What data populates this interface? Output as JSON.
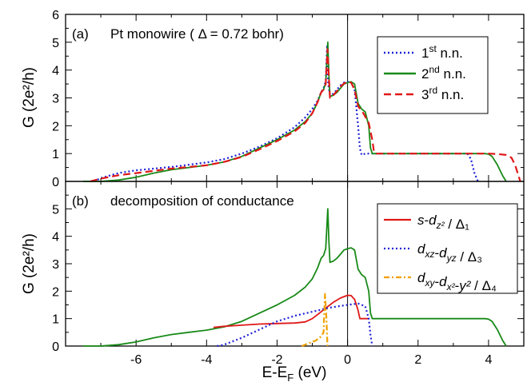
{
  "chart_data": [
    {
      "type": "line",
      "panel": "(a)",
      "title": "Pt monowire ( Δ = 0.72 bohr)",
      "xlabel": "E-E_F (eV)",
      "ylabel": "G (2e²/h)",
      "xlim": [
        -8,
        5
      ],
      "ylim": [
        0,
        6
      ],
      "xticks": [],
      "yticks": [
        "0",
        "1",
        "2",
        "3",
        "4",
        "5",
        "6"
      ],
      "legend_position": "top-right",
      "series": [
        {
          "name": "1st n.n.",
          "color": "#1f22d6",
          "dash": "dotted",
          "points": [
            [
              -7.2,
              0
            ],
            [
              -7.0,
              0.12
            ],
            [
              -6.5,
              0.3
            ],
            [
              -6.0,
              0.4
            ],
            [
              -5.5,
              0.46
            ],
            [
              -5.0,
              0.52
            ],
            [
              -4.5,
              0.6
            ],
            [
              -4.0,
              0.68
            ],
            [
              -3.5,
              0.8
            ],
            [
              -3.0,
              1.0
            ],
            [
              -2.5,
              1.25
            ],
            [
              -2.0,
              1.55
            ],
            [
              -1.5,
              1.95
            ],
            [
              -1.2,
              2.3
            ],
            [
              -1.0,
              2.6
            ],
            [
              -0.85,
              2.9
            ],
            [
              -0.75,
              3.2
            ],
            [
              -0.68,
              3.35
            ],
            [
              -0.62,
              3.6
            ],
            [
              -0.58,
              4.9
            ],
            [
              -0.55,
              3.5
            ],
            [
              -0.5,
              3.1
            ],
            [
              -0.4,
              3.15
            ],
            [
              -0.3,
              3.3
            ],
            [
              -0.2,
              3.45
            ],
            [
              -0.1,
              3.55
            ],
            [
              0.0,
              3.58
            ],
            [
              0.1,
              3.55
            ],
            [
              0.2,
              3.3
            ],
            [
              0.3,
              2.0
            ],
            [
              0.35,
              1.2
            ],
            [
              0.4,
              0.95
            ],
            [
              0.5,
              1.0
            ],
            [
              1.0,
              1.0
            ],
            [
              2.0,
              1.0
            ],
            [
              3.0,
              1.0
            ],
            [
              3.4,
              1.0
            ],
            [
              3.5,
              0.8
            ],
            [
              3.6,
              0.3
            ],
            [
              3.7,
              0
            ]
          ]
        },
        {
          "name": "2nd n.n.",
          "color": "#188a18",
          "dash": "solid",
          "points": [
            [
              -7.5,
              0
            ],
            [
              -7.0,
              0
            ],
            [
              -6.5,
              0.05
            ],
            [
              -6.0,
              0.15
            ],
            [
              -5.5,
              0.3
            ],
            [
              -5.0,
              0.42
            ],
            [
              -4.5,
              0.5
            ],
            [
              -4.0,
              0.58
            ],
            [
              -3.5,
              0.7
            ],
            [
              -3.0,
              0.9
            ],
            [
              -2.5,
              1.2
            ],
            [
              -2.0,
              1.5
            ],
            [
              -1.5,
              1.85
            ],
            [
              -1.2,
              2.15
            ],
            [
              -1.0,
              2.45
            ],
            [
              -0.85,
              2.85
            ],
            [
              -0.75,
              3.2
            ],
            [
              -0.68,
              3.3
            ],
            [
              -0.62,
              3.55
            ],
            [
              -0.56,
              5.0
            ],
            [
              -0.53,
              3.8
            ],
            [
              -0.5,
              3.05
            ],
            [
              -0.4,
              3.1
            ],
            [
              -0.3,
              3.2
            ],
            [
              -0.2,
              3.35
            ],
            [
              -0.1,
              3.5
            ],
            [
              0.0,
              3.55
            ],
            [
              0.1,
              3.58
            ],
            [
              0.2,
              3.5
            ],
            [
              0.3,
              2.8
            ],
            [
              0.4,
              2.6
            ],
            [
              0.5,
              2.5
            ],
            [
              0.6,
              2.0
            ],
            [
              0.65,
              1.2
            ],
            [
              0.7,
              1.0
            ],
            [
              1.0,
              1.0
            ],
            [
              2.0,
              1.0
            ],
            [
              3.0,
              1.0
            ],
            [
              3.9,
              1.0
            ],
            [
              4.0,
              0.98
            ],
            [
              4.1,
              0.9
            ],
            [
              4.25,
              0.6
            ],
            [
              4.4,
              0.2
            ],
            [
              4.5,
              0
            ]
          ]
        },
        {
          "name": "3rd n.n.",
          "color": "#e01818",
          "dash": "dashed",
          "points": [
            [
              -7.3,
              0
            ],
            [
              -7.0,
              0.1
            ],
            [
              -6.5,
              0.22
            ],
            [
              -6.0,
              0.3
            ],
            [
              -5.5,
              0.38
            ],
            [
              -5.0,
              0.46
            ],
            [
              -4.5,
              0.52
            ],
            [
              -4.0,
              0.58
            ],
            [
              -3.5,
              0.7
            ],
            [
              -3.0,
              0.88
            ],
            [
              -2.5,
              1.15
            ],
            [
              -2.0,
              1.45
            ],
            [
              -1.5,
              1.8
            ],
            [
              -1.2,
              2.1
            ],
            [
              -1.0,
              2.45
            ],
            [
              -0.85,
              2.85
            ],
            [
              -0.75,
              3.2
            ],
            [
              -0.68,
              3.3
            ],
            [
              -0.62,
              3.5
            ],
            [
              -0.57,
              4.75
            ],
            [
              -0.53,
              3.7
            ],
            [
              -0.5,
              3.0
            ],
            [
              -0.4,
              3.1
            ],
            [
              -0.3,
              3.25
            ],
            [
              -0.2,
              3.4
            ],
            [
              -0.1,
              3.52
            ],
            [
              0.0,
              3.58
            ],
            [
              0.1,
              3.55
            ],
            [
              0.2,
              3.3
            ],
            [
              0.3,
              2.7
            ],
            [
              0.45,
              2.45
            ],
            [
              0.6,
              2.1
            ],
            [
              0.7,
              1.5
            ],
            [
              0.75,
              1.05
            ],
            [
              0.8,
              1.0
            ],
            [
              1.0,
              1.0
            ],
            [
              2.0,
              1.0
            ],
            [
              3.0,
              1.0
            ],
            [
              4.0,
              1.0
            ],
            [
              4.3,
              0.98
            ],
            [
              4.5,
              0.95
            ],
            [
              4.65,
              0.85
            ],
            [
              4.75,
              0.6
            ],
            [
              4.85,
              0.2
            ],
            [
              4.9,
              0
            ]
          ]
        }
      ]
    },
    {
      "type": "line",
      "panel": "(b)",
      "title": "decomposition of conductance",
      "xlabel": "E-E_F (eV)",
      "ylabel": "G (2e²/h)",
      "xlim": [
        -8,
        5
      ],
      "ylim": [
        0,
        6
      ],
      "xticks": [
        "-6",
        "-4",
        "-2",
        "0",
        "2",
        "4"
      ],
      "yticks": [
        "0",
        "1",
        "2",
        "3",
        "4",
        "5"
      ],
      "legend_position": "top-right",
      "series": [
        {
          "name": "total (2nd n.n.)",
          "color": "#188a18",
          "dash": "solid",
          "in_legend": false,
          "points": [
            [
              -7.5,
              0
            ],
            [
              -7.0,
              0
            ],
            [
              -6.5,
              0.05
            ],
            [
              -6.0,
              0.15
            ],
            [
              -5.5,
              0.3
            ],
            [
              -5.0,
              0.42
            ],
            [
              -4.5,
              0.5
            ],
            [
              -4.0,
              0.58
            ],
            [
              -3.5,
              0.7
            ],
            [
              -3.0,
              0.9
            ],
            [
              -2.5,
              1.2
            ],
            [
              -2.0,
              1.5
            ],
            [
              -1.5,
              1.85
            ],
            [
              -1.2,
              2.15
            ],
            [
              -1.0,
              2.45
            ],
            [
              -0.85,
              2.85
            ],
            [
              -0.75,
              3.2
            ],
            [
              -0.68,
              3.3
            ],
            [
              -0.62,
              3.55
            ],
            [
              -0.56,
              5.0
            ],
            [
              -0.53,
              3.8
            ],
            [
              -0.5,
              3.05
            ],
            [
              -0.4,
              3.1
            ],
            [
              -0.3,
              3.2
            ],
            [
              -0.2,
              3.35
            ],
            [
              -0.1,
              3.5
            ],
            [
              0.0,
              3.55
            ],
            [
              0.1,
              3.58
            ],
            [
              0.2,
              3.5
            ],
            [
              0.3,
              2.8
            ],
            [
              0.4,
              2.6
            ],
            [
              0.5,
              2.5
            ],
            [
              0.6,
              2.0
            ],
            [
              0.65,
              1.2
            ],
            [
              0.7,
              1.0
            ],
            [
              1.0,
              1.0
            ],
            [
              2.0,
              1.0
            ],
            [
              3.0,
              1.0
            ],
            [
              3.9,
              1.0
            ],
            [
              4.0,
              0.98
            ],
            [
              4.1,
              0.9
            ],
            [
              4.25,
              0.6
            ],
            [
              4.4,
              0.2
            ],
            [
              4.5,
              0
            ]
          ]
        },
        {
          "name": "s-d_z² / Δ₁",
          "color": "#e01818",
          "dash": "solid",
          "in_legend": true,
          "points": [
            [
              -3.8,
              0.68
            ],
            [
              -3.5,
              0.72
            ],
            [
              -3.0,
              0.76
            ],
            [
              -2.5,
              0.8
            ],
            [
              -2.0,
              0.82
            ],
            [
              -1.5,
              0.84
            ],
            [
              -1.2,
              0.88
            ],
            [
              -1.0,
              1.0
            ],
            [
              -0.8,
              1.2
            ],
            [
              -0.6,
              1.4
            ],
            [
              -0.4,
              1.6
            ],
            [
              -0.2,
              1.75
            ],
            [
              0.0,
              1.85
            ],
            [
              0.1,
              1.84
            ],
            [
              0.2,
              1.7
            ],
            [
              0.3,
              1.3
            ],
            [
              0.35,
              1.0
            ],
            [
              0.5,
              1.0
            ],
            [
              0.6,
              1.0
            ]
          ]
        },
        {
          "name": "d_xz-d_yz / Δ₃",
          "color": "#1f22d6",
          "dash": "dotted",
          "in_legend": true,
          "points": [
            [
              -3.7,
              0
            ],
            [
              -3.5,
              0.05
            ],
            [
              -3.0,
              0.3
            ],
            [
              -2.5,
              0.6
            ],
            [
              -2.0,
              0.9
            ],
            [
              -1.5,
              1.1
            ],
            [
              -1.0,
              1.25
            ],
            [
              -0.5,
              1.4
            ],
            [
              0.0,
              1.5
            ],
            [
              0.3,
              1.55
            ],
            [
              0.5,
              1.45
            ],
            [
              0.6,
              1.0
            ],
            [
              0.65,
              0.4
            ],
            [
              0.7,
              0
            ]
          ]
        },
        {
          "name": "d_xy-d_x²-y² / Δ₄",
          "color": "#f0a000",
          "dash": "dashdot",
          "in_legend": true,
          "points": [
            [
              -1.3,
              0
            ],
            [
              -1.1,
              0.1
            ],
            [
              -0.9,
              0.2
            ],
            [
              -0.75,
              0.35
            ],
            [
              -0.68,
              0.5
            ],
            [
              -0.64,
              1.9
            ],
            [
              -0.6,
              1.0
            ],
            [
              -0.57,
              0
            ]
          ]
        }
      ]
    }
  ],
  "labels": {
    "a": {
      "panel": "(a)",
      "title": "Pt monowire ( Δ = 0.72 bohr)"
    },
    "b": {
      "panel": "(b)",
      "title": "decomposition of conductance"
    },
    "ylabel": "G (2e²/h)",
    "xlabel": "E-E_F (eV)"
  }
}
